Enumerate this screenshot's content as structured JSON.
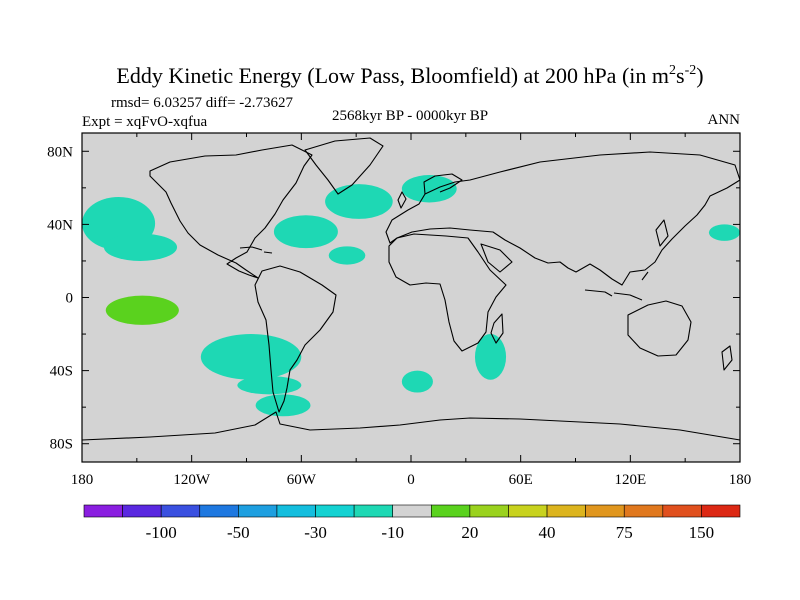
{
  "chart_data": {
    "type": "heatmap",
    "projection": "cylindrical-equidistant",
    "title": "Eddy Kinetic Energy (Low Pass, Bloomfield) at 200 hPa (in m",
    "title_sup1": "2",
    "title_mid": "s",
    "title_sup2": "-2",
    "title_end": ")",
    "rmsd_text": "rmsd= 6.03257 diff= -2.73627",
    "expt_text": "Expt = xqFvO-xqfua",
    "period_text": "2568kyr BP - 0000kyr BP",
    "season_text": "ANN",
    "x_range": [
      -180,
      180
    ],
    "y_range": [
      -90,
      90
    ],
    "x_ticks": [
      {
        "value": -180,
        "label": "180"
      },
      {
        "value": -120,
        "label": "120W"
      },
      {
        "value": -60,
        "label": "60W"
      },
      {
        "value": 0,
        "label": "0"
      },
      {
        "value": 60,
        "label": "60E"
      },
      {
        "value": 120,
        "label": "120E"
      },
      {
        "value": 180,
        "label": "180"
      }
    ],
    "y_ticks": [
      {
        "value": 80,
        "label": "80N"
      },
      {
        "value": 40,
        "label": "40N"
      },
      {
        "value": 0,
        "label": "0"
      },
      {
        "value": -40,
        "label": "40S"
      },
      {
        "value": -80,
        "label": "80S"
      }
    ],
    "background_color": "#d3d3d3",
    "colorbar": {
      "colors": [
        "#8a1ee0",
        "#5a28e0",
        "#3a50e0",
        "#1e78e0",
        "#1e9fe0",
        "#14bede",
        "#14d2d2",
        "#1ed8b4",
        "#d3d3d3",
        "#5ad21e",
        "#9ad21e",
        "#c8d21e",
        "#dcb41e",
        "#e0961e",
        "#e0781e",
        "#e0501e",
        "#dc2814"
      ],
      "labels": [
        {
          "after_index": 1,
          "text": "-100"
        },
        {
          "after_index": 3,
          "text": "-50"
        },
        {
          "after_index": 5,
          "text": "-30"
        },
        {
          "after_index": 7,
          "text": "-10"
        },
        {
          "after_index": 9,
          "text": "20"
        },
        {
          "after_index": 11,
          "text": "40"
        },
        {
          "after_index": 13,
          "text": "75"
        },
        {
          "after_index": 15,
          "text": "150"
        }
      ]
    },
    "anomalies": [
      {
        "name": "n-pacific-west",
        "lon": [
          -180,
          -140
        ],
        "lat": [
          26,
          55
        ],
        "category": "-10",
        "color": "#1ed8b4"
      },
      {
        "name": "n-pacific-east",
        "lon": [
          -168,
          -128
        ],
        "lat": [
          20,
          35
        ],
        "category": "-10",
        "color": "#1ed8b4"
      },
      {
        "name": "n-pacific-far-east",
        "lon": [
          163,
          180
        ],
        "lat": [
          31,
          40
        ],
        "category": "-10",
        "color": "#1ed8b4"
      },
      {
        "name": "subtropical-pacific",
        "lon": [
          -167,
          -127
        ],
        "lat": [
          -15,
          1
        ],
        "category": "20",
        "color": "#5ad21e"
      },
      {
        "name": "n-atlantic-west",
        "lon": [
          -75,
          -40
        ],
        "lat": [
          27,
          45
        ],
        "category": "-10",
        "color": "#1ed8b4"
      },
      {
        "name": "n-atlantic-central",
        "lon": [
          -47,
          -10
        ],
        "lat": [
          43,
          62
        ],
        "category": "-10",
        "color": "#1ed8b4"
      },
      {
        "name": "scandinavia",
        "lon": [
          -5,
          25
        ],
        "lat": [
          52,
          67
        ],
        "category": "-10",
        "color": "#1ed8b4"
      },
      {
        "name": "azores",
        "lon": [
          -45,
          -25
        ],
        "lat": [
          18,
          28
        ],
        "category": "-10",
        "color": "#1ed8b4"
      },
      {
        "name": "s-pacific-central",
        "lon": [
          -115,
          -60
        ],
        "lat": [
          -45,
          -20
        ],
        "category": "-10",
        "color": "#1ed8b4"
      },
      {
        "name": "s-pacific-south",
        "lon": [
          -95,
          -60
        ],
        "lat": [
          -53,
          -43
        ],
        "category": "-10",
        "color": "#1ed8b4"
      },
      {
        "name": "drake-passage",
        "lon": [
          -85,
          -55
        ],
        "lat": [
          -65,
          -53
        ],
        "category": "-10",
        "color": "#1ed8b4"
      },
      {
        "name": "s-atlantic",
        "lon": [
          -5,
          12
        ],
        "lat": [
          -52,
          -40
        ],
        "category": "-10",
        "color": "#1ed8b4"
      },
      {
        "name": "mozambique",
        "lon": [
          35,
          52
        ],
        "lat": [
          -45,
          -20
        ],
        "category": "-10",
        "color": "#1ed8b4"
      }
    ]
  }
}
